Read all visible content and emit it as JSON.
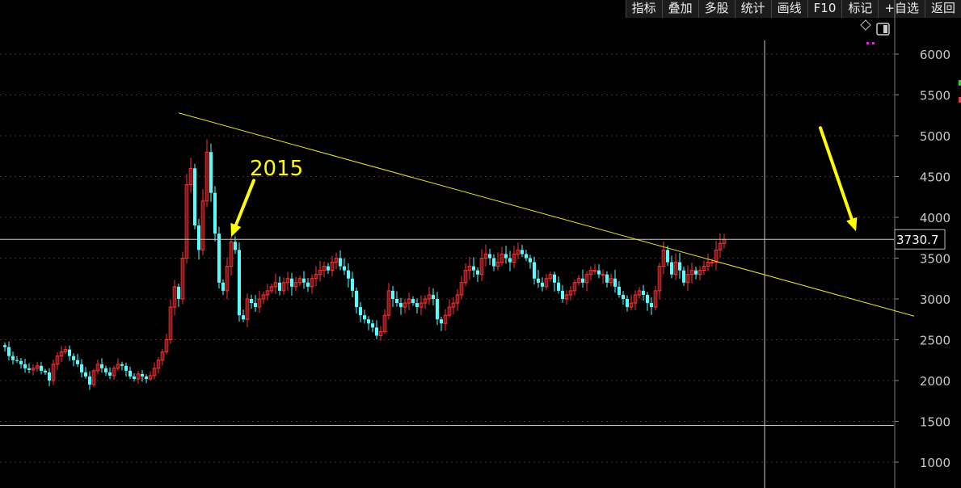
{
  "toolbar": {
    "items": [
      "指标",
      "叠加",
      "多股",
      "统计",
      "画线",
      "F10",
      "标记",
      "+自选",
      "返回"
    ]
  },
  "crosshair": {
    "price_label": "3730.7",
    "price": 3730.7,
    "candle_index": 188
  },
  "annotation": {
    "text": "2015",
    "arrow1_target_index": 56,
    "arrow1_target_price": 3700,
    "arrow2_target_index": 211,
    "arrow2_target_price": 3750
  },
  "trendline": {
    "start_index": 43,
    "start_price": 5280,
    "end_index": 225,
    "end_price": 2790
  },
  "hline_1500": 1450,
  "colors": {
    "background": "#000000",
    "up": "#ff3232",
    "down": "#54ffff",
    "trendline": "#e6e62e",
    "crosshair": "#c8c8c8",
    "annotation": "#ffff00",
    "grid": "#4a2a2a"
  },
  "chart_data": {
    "type": "candlestick",
    "ylim": [
      850,
      6350
    ],
    "yticks": [
      1000,
      1500,
      2000,
      2500,
      3000,
      3500,
      4000,
      4500,
      5000,
      5500,
      6000
    ],
    "grid": "horizontal-dotted",
    "candles": [
      2410,
      2300,
      2250,
      2240,
      2200,
      2150,
      2130,
      2150,
      2180,
      2120,
      2100,
      2000,
      2200,
      2300,
      2350,
      2380,
      2300,
      2250,
      2200,
      2100,
      2050,
      1950,
      2120,
      2200,
      2150,
      2100,
      2060,
      2150,
      2200,
      2180,
      2120,
      2050,
      2020,
      2080,
      2050,
      2020,
      2060,
      2150,
      2250,
      2350,
      2500,
      2900,
      3150,
      3000,
      3500,
      4400,
      4600,
      3900,
      3600,
      4200,
      4800,
      4300,
      3800,
      3200,
      3100,
      3400,
      3700,
      3600,
      2800,
      2750,
      3000,
      2950,
      2900,
      3000,
      3050,
      3100,
      3150,
      3200,
      3100,
      3200,
      3250,
      3150,
      3200,
      3250,
      3200,
      3150,
      3250,
      3300,
      3350,
      3400,
      3350,
      3450,
      3500,
      3400,
      3350,
      3250,
      3100,
      2900,
      2800,
      2750,
      2700,
      2650,
      2550,
      2600,
      2800,
      3100,
      3000,
      2950,
      2900,
      2950,
      3000,
      2950,
      2900,
      2950,
      3000,
      3050,
      3000,
      2750,
      2700,
      2800,
      2900,
      2950,
      3050,
      3200,
      3350,
      3400,
      3350,
      3300,
      3500,
      3550,
      3500,
      3400,
      3450,
      3550,
      3500,
      3450,
      3550,
      3600,
      3550,
      3500,
      3450,
      3250,
      3200,
      3150,
      3250,
      3300,
      3200,
      3100,
      3000,
      3050,
      3100,
      3200,
      3250,
      3200,
      3300,
      3350,
      3350,
      3300,
      3300,
      3200,
      3250,
      3150,
      3050,
      3000,
      2900,
      2950,
      3050,
      3100,
      3050,
      2950,
      2900,
      3100,
      3400,
      3600,
      3450,
      3300,
      3450,
      3350,
      3200,
      3300,
      3350,
      3300,
      3350,
      3400,
      3450,
      3450,
      3600,
      3680,
      3730
    ],
    "series_note": ""
  }
}
